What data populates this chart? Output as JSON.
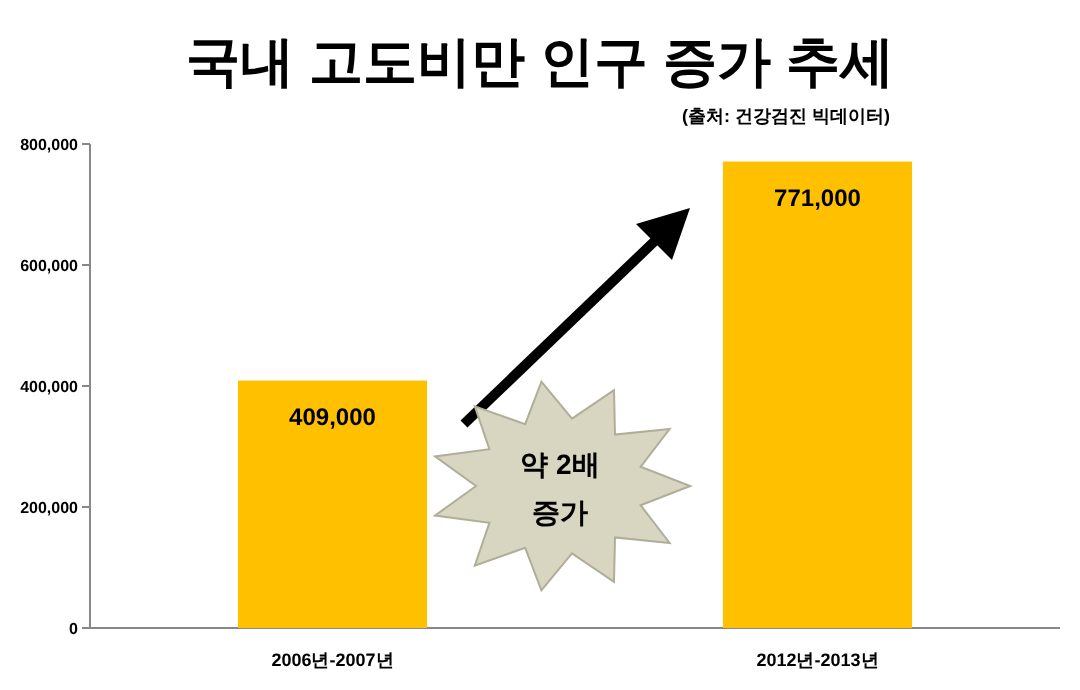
{
  "chart_data": {
    "type": "bar",
    "title": "국내 고도비만 인구 증가 추세",
    "categories": [
      "2006년-2007년",
      "2012년-2013년"
    ],
    "values": [
      409000,
      771000
    ],
    "value_labels": [
      "409,000",
      "771,000"
    ],
    "color": "#ffc000",
    "ylim": [
      0,
      800000
    ],
    "yticks": [
      0,
      {
        "value": 200000,
        "label": "200,000"
      },
      {
        "value": 400000,
        "label": "400,000"
      },
      {
        "value": 600000,
        "label": "600,000"
      },
      {
        "value": 800000,
        "label": "800,000"
      }
    ],
    "annotations": [
      "(출처: 건강검진 빅데이터)",
      "약 2배 증가"
    ]
  }
}
